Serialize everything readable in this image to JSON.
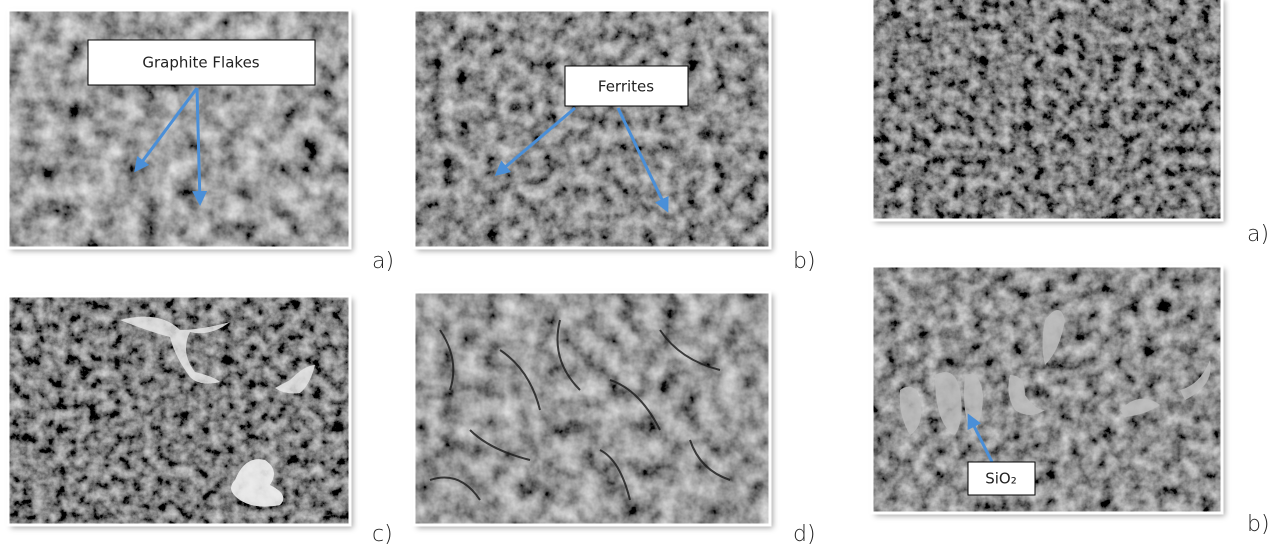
{
  "panels": [
    {
      "label": "a)",
      "callout": "Graphite Flakes"
    },
    {
      "label": "b)",
      "callout": "Ferrites"
    },
    {
      "label": "c)"
    },
    {
      "label": "d)"
    },
    {
      "label": "a)"
    },
    {
      "label": "b)",
      "callout": "SiO₂"
    }
  ]
}
